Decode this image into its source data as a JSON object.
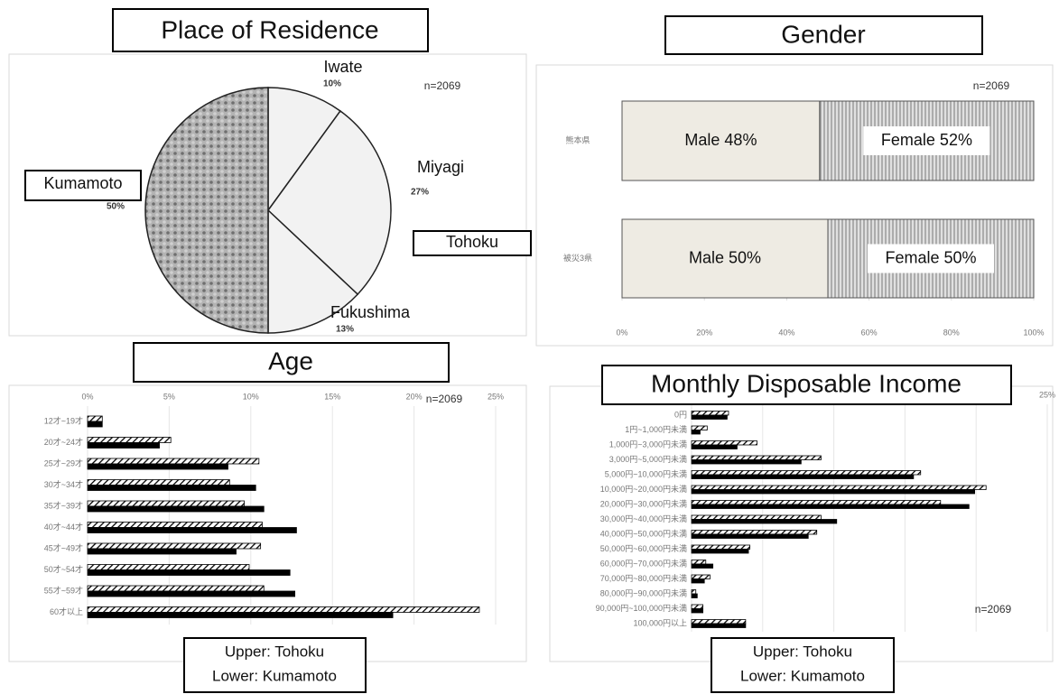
{
  "chart_data": [
    {
      "type": "pie",
      "title": "Place of Residence",
      "categories": [
        "Iwate",
        "Miyagi",
        "Fukushima",
        "Kumamoto"
      ],
      "values": [
        10,
        27,
        13,
        50
      ],
      "value_labels": [
        "10%",
        "27%",
        "13%",
        "50%"
      ],
      "colors": [
        "#f2f2f2",
        "#f2f2f2",
        "#f2f2f2",
        "#a6a6a6"
      ],
      "patterns": [
        null,
        null,
        null,
        "dots"
      ],
      "annotations": [
        "n=2069",
        "Tohoku"
      ]
    },
    {
      "type": "stacked-bar",
      "title": "Gender",
      "orientation": "horizontal",
      "categories": [
        "熊本県",
        "被災3県"
      ],
      "series": [
        {
          "name": "Male",
          "color": "#eeebe3",
          "values": [
            48,
            50
          ],
          "value_labels": [
            "Male 48%",
            "Male 50%"
          ]
        },
        {
          "name": "Female",
          "color": "#d9d9d9",
          "pattern": "stripes",
          "values": [
            52,
            50
          ],
          "value_labels": [
            "Female 52%",
            "Female 50%"
          ]
        }
      ],
      "xlim": [
        0,
        100
      ],
      "xticks": [
        {
          "value": 0,
          "label": "0%"
        },
        {
          "value": 20,
          "label": "20%"
        },
        {
          "value": 40,
          "label": "40%"
        },
        {
          "value": 60,
          "label": "60%"
        },
        {
          "value": 80,
          "label": "80%"
        },
        {
          "value": 100,
          "label": "100%"
        }
      ],
      "annotations": [
        "n=2069"
      ]
    },
    {
      "type": "grouped-bar",
      "title": "Age",
      "orientation": "horizontal",
      "categories": [
        "12才~19才",
        "20才~24才",
        "25才~29才",
        "30才~34才",
        "35才~39才",
        "40才~44才",
        "45才~49才",
        "50才~54才",
        "55才~59才",
        "60才以上"
      ],
      "series": [
        {
          "name": "Upper: Tohoku",
          "color": "#ffffff",
          "pattern": "hatch",
          "values": [
            0.9,
            5.1,
            10.5,
            8.7,
            9.6,
            10.7,
            10.6,
            9.9,
            10.8,
            24.0
          ]
        },
        {
          "name": "Lower: Kumamoto",
          "color": "#000000",
          "values": [
            0.9,
            4.4,
            8.6,
            10.3,
            10.8,
            12.8,
            9.1,
            12.4,
            12.7,
            18.7
          ]
        }
      ],
      "xlim": [
        0,
        25
      ],
      "xticks": [
        {
          "value": 0,
          "label": "0%"
        },
        {
          "value": 5,
          "label": "5%"
        },
        {
          "value": 10,
          "label": "10%"
        },
        {
          "value": 15,
          "label": "15%"
        },
        {
          "value": 20,
          "label": "20%"
        },
        {
          "value": 25,
          "label": "25%"
        }
      ],
      "grid": true,
      "annotations": [
        "n=2069"
      ]
    },
    {
      "type": "grouped-bar",
      "title": "Monthly Disposable Income",
      "orientation": "horizontal",
      "categories": [
        "0円",
        "1円~1,000円未満",
        "1,000円~3,000円未満",
        "3,000円~5,000円未満",
        "5,000円~10,000円未満",
        "10,000円~20,000円未満",
        "20,000円~30,000円未満",
        "30,000円~40,000円未満",
        "40,000円~50,000円未満",
        "50,000円~60,000円未満",
        "60,000円~70,000円未満",
        "70,000円~80,000円未満",
        "80,000円~90,000円未満",
        "90,000円~100,000円未満",
        "100,000円以上"
      ],
      "series": [
        {
          "name": "Upper: Tohoku",
          "color": "#ffffff",
          "pattern": "hatch",
          "values": [
            2.6,
            1.1,
            4.6,
            9.1,
            16.1,
            20.7,
            17.5,
            9.1,
            8.8,
            4.1,
            1.0,
            1.3,
            0.3,
            0.8,
            3.8
          ]
        },
        {
          "name": "Lower: Kumamoto",
          "color": "#000000",
          "values": [
            2.5,
            0.6,
            3.2,
            7.7,
            15.6,
            19.9,
            19.5,
            10.2,
            8.2,
            4.0,
            1.5,
            0.9,
            0.4,
            0.8,
            3.8
          ]
        }
      ],
      "xlim": [
        0,
        25
      ],
      "xticks": [
        {
          "value": 0,
          "label": "0%"
        },
        {
          "value": 5,
          "label": "5%"
        },
        {
          "value": 10,
          "label": "10%"
        },
        {
          "value": 15,
          "label": "15%"
        },
        {
          "value": 20,
          "label": "20%"
        },
        {
          "value": 25,
          "label": "25%"
        }
      ],
      "grid": true,
      "annotations": [
        "n=2069"
      ]
    }
  ]
}
